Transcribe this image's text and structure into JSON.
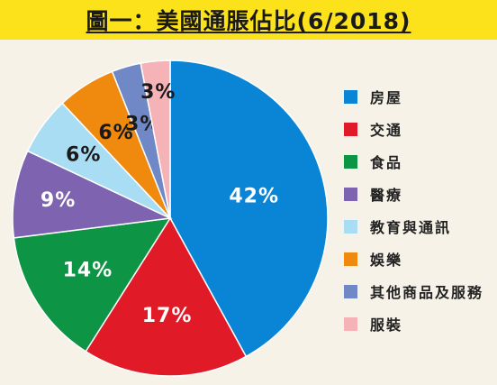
{
  "title": "圖一：美國通脹佔比(6/2018)",
  "chart_data": {
    "type": "pie",
    "title": "圖一：美國通脹佔比(6/2018)",
    "slices": [
      {
        "label": "房屋",
        "value": 42,
        "display": "42%",
        "color": "#0a85d6",
        "text_color": "#ffffff"
      },
      {
        "label": "交通",
        "value": 17,
        "display": "17%",
        "color": "#e01a26",
        "text_color": "#ffffff"
      },
      {
        "label": "食品",
        "value": 14,
        "display": "14%",
        "color": "#0d9444",
        "text_color": "#ffffff"
      },
      {
        "label": "醫療",
        "value": 9,
        "display": "9%",
        "color": "#7e63b0",
        "text_color": "#ffffff"
      },
      {
        "label": "教育與通訊",
        "value": 6,
        "display": "6%",
        "color": "#a9ddf4",
        "text_color": "#1a1a1a"
      },
      {
        "label": "娛樂",
        "value": 6,
        "display": "6%",
        "color": "#ef8a0f",
        "text_color": "#1a1a1a"
      },
      {
        "label": "其他商品及服務",
        "value": 3,
        "display": "3%",
        "color": "#7089c6",
        "text_color": "#1a1a1a"
      },
      {
        "label": "服裝",
        "value": 3,
        "display": "3%",
        "color": "#f5b3b8",
        "text_color": "#1a1a1a"
      }
    ],
    "legend_position": "right"
  }
}
